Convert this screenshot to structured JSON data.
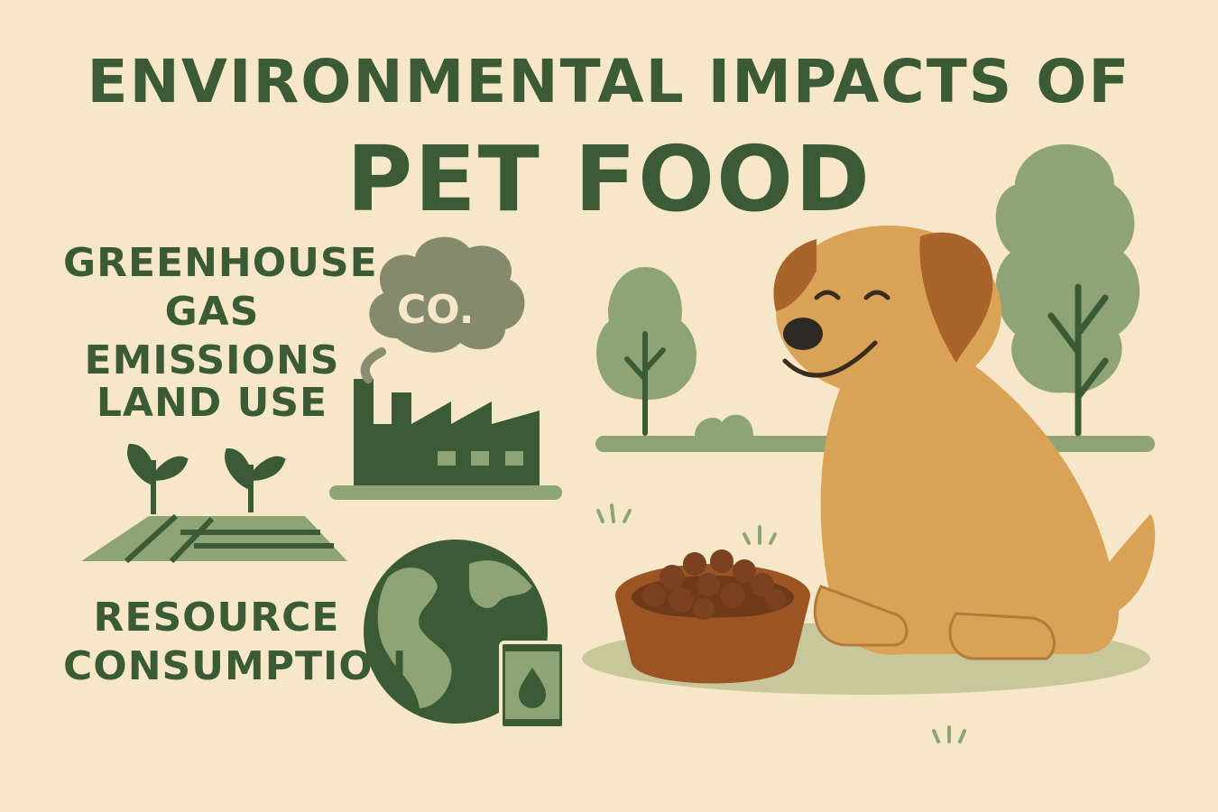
{
  "title": {
    "line1": "ENVIRONMENTAL IMPACTS OF",
    "line2": "PET FOOD"
  },
  "impacts": [
    {
      "label_line1": "GREENHOUSE",
      "label_line2": "GAS EMISSIONS",
      "icon": "factory-co2-cloud-icon"
    },
    {
      "label_line1": "LAND USE",
      "label_line2": "",
      "icon": "farmland-sprouts-icon"
    },
    {
      "label_line1": "RESOURCE",
      "label_line2": "CONSUMPTION",
      "icon": "globe-water-can-icon"
    }
  ],
  "cloud_text": "CO.",
  "colors": {
    "background": "#f6e7c9",
    "dark_green": "#3b5b37",
    "sage": "#8fa475",
    "dog": "#d9a257",
    "dog_ear": "#a8642a",
    "bowl": "#9c5424"
  }
}
